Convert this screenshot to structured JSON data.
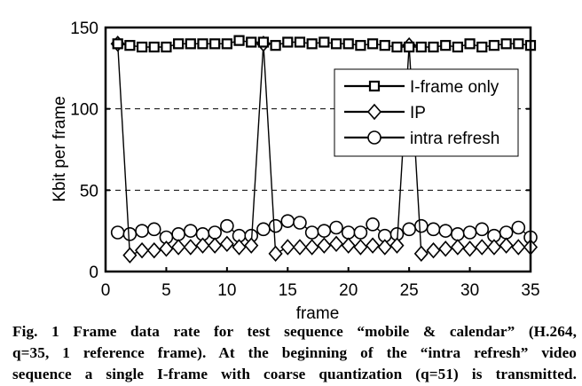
{
  "chart_data": {
    "type": "line",
    "title": "",
    "xlabel": "frame",
    "ylabel": "Kbit per frame",
    "xlim": [
      0,
      35
    ],
    "ylim": [
      0,
      150
    ],
    "xticks": [
      0,
      5,
      10,
      15,
      20,
      25,
      30,
      35
    ],
    "yticks": [
      0,
      50,
      100,
      150
    ],
    "xtick_labels": [
      "0",
      "5",
      "10",
      "15",
      "20",
      "25",
      "30",
      "35"
    ],
    "ytick_labels": [
      "0",
      "50",
      "100",
      "150"
    ],
    "grid": "horizontal dashed at y=50 and y=100",
    "legend_position": "upper right (inside axes)",
    "x": [
      1,
      2,
      3,
      4,
      5,
      6,
      7,
      8,
      9,
      10,
      11,
      12,
      13,
      14,
      15,
      16,
      17,
      18,
      19,
      20,
      21,
      22,
      23,
      24,
      25,
      26,
      27,
      28,
      29,
      30,
      31,
      32,
      33,
      34,
      35
    ],
    "series": [
      {
        "name": "I-frame only",
        "marker": "square",
        "values": [
          140,
          139,
          138,
          138,
          138,
          140,
          140,
          140,
          140,
          140,
          142,
          141,
          141,
          139,
          141,
          141,
          140,
          141,
          140,
          140,
          139,
          140,
          139,
          138,
          138,
          138,
          138,
          139,
          138,
          140,
          138,
          139,
          140,
          140,
          139
        ]
      },
      {
        "name": "IP",
        "marker": "diamond",
        "values": [
          140,
          10,
          13,
          13,
          14,
          15,
          15,
          16,
          16,
          17,
          15,
          16,
          140,
          11,
          15,
          15,
          15,
          16,
          17,
          16,
          15,
          16,
          15,
          16,
          139,
          11,
          13,
          14,
          15,
          14,
          15,
          15,
          16,
          15,
          15
        ]
      },
      {
        "name": "intra refresh",
        "marker": "circle",
        "values": [
          24,
          23,
          25,
          26,
          21,
          23,
          25,
          23,
          24,
          28,
          22,
          22,
          26,
          28,
          31,
          30,
          24,
          25,
          27,
          24,
          24,
          29,
          22,
          23,
          26,
          28,
          26,
          25,
          23,
          24,
          26,
          22,
          24,
          27,
          21
        ]
      }
    ]
  },
  "legend": {
    "items": [
      {
        "label": "I-frame only",
        "marker": "square"
      },
      {
        "label": "IP",
        "marker": "diamond"
      },
      {
        "label": "intra refresh",
        "marker": "circle"
      }
    ]
  },
  "caption": {
    "line1": "Fig. 1  Frame data rate for test sequence “mobile & calendar” (H.264,",
    "line2": "q=35, 1 reference frame). At the beginning of the “intra refresh” video",
    "line3": "sequence a single I-frame with coarse quantization (q=51) is transmitted."
  },
  "colors": {
    "line": "#000000",
    "marker_fill": "#ffffff",
    "background": "#ffffff"
  }
}
